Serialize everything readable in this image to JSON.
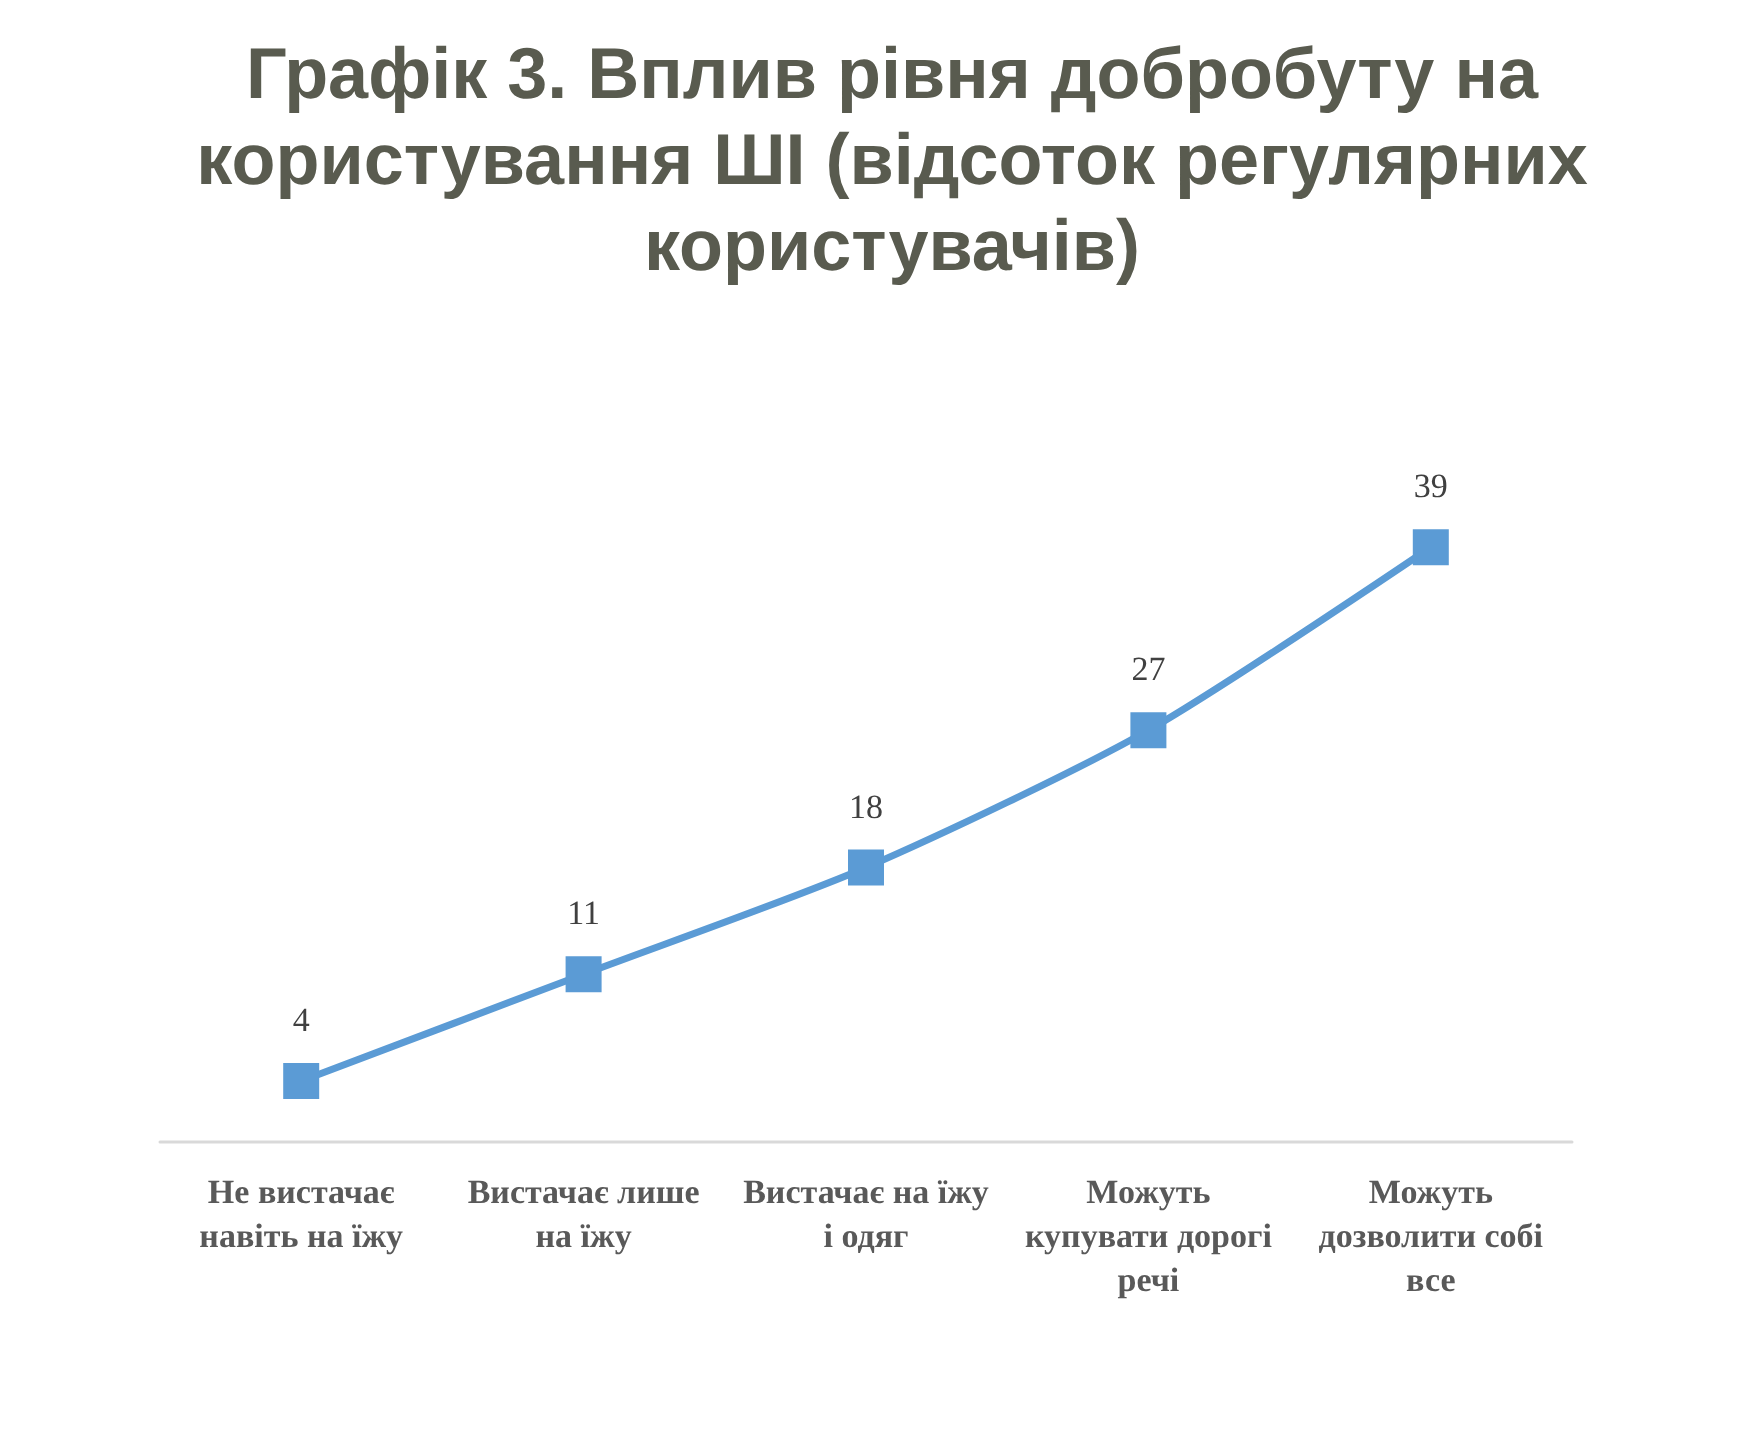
{
  "chart_data": {
    "type": "line",
    "title": "Графік 3. Вплив рівня добробуту на користування ШІ (відсоток регулярних користувачів)",
    "categories": [
      "Не вистачає навіть на їжу",
      "Вистачає лише на їжу",
      "Вистачає на їжу і одяг",
      "Можуть купувати дорогі речі",
      "Можуть дозволити собі все"
    ],
    "values": [
      4,
      11,
      18,
      27,
      39
    ],
    "color": "#5b9bd5",
    "data_labels": true,
    "marker": "square",
    "line_style": "solid",
    "tick_labels": "x"
  }
}
